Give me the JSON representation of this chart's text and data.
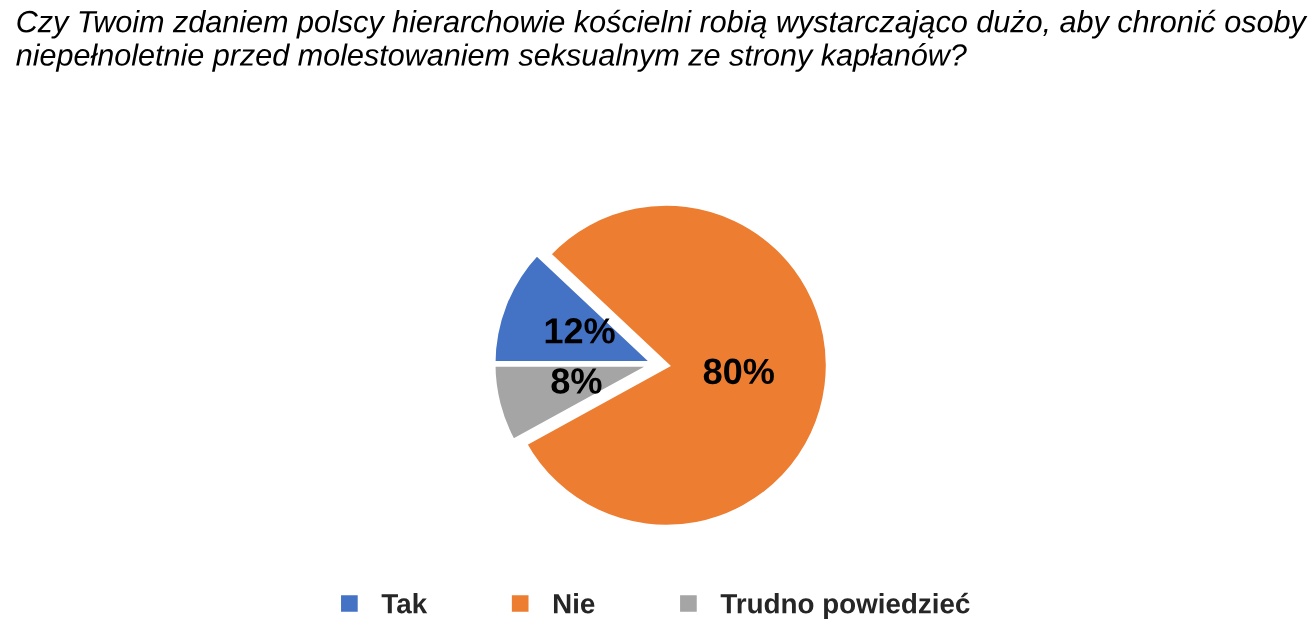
{
  "chart_data": {
    "type": "pie",
    "title": "Czy Twoim zdaniem polscy hierarchowie kościelni robią wystarczająco dużo, aby chronić osoby\nniepełnoletnie przed molestowaniem seksualnym ze strony kapłanów?",
    "categories": [
      "Tak",
      "Nie",
      "Trudno powiedzieć"
    ],
    "values": [
      12,
      80,
      8
    ],
    "colors": [
      "#4472c4",
      "#ed7d31",
      "#a5a5a5"
    ],
    "value_labels": [
      "12%",
      "80%",
      "8%"
    ],
    "legend": "bottom"
  }
}
